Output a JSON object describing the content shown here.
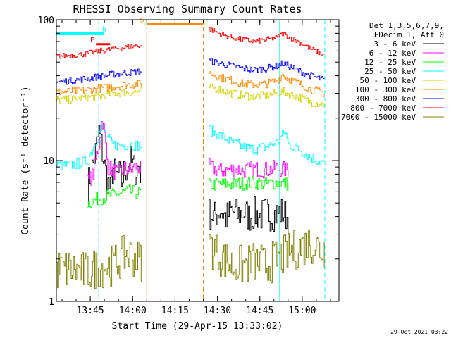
{
  "chart_data": {
    "type": "line",
    "title": "RHESSI Observing Summary Count Rates",
    "xlabel": "Start Time (29-Apr-15 13:33:02)",
    "ylabel": "Count Rate (s⁻¹ detector⁻¹)",
    "yscale": "log",
    "ylim": [
      1,
      100
    ],
    "xlim_minutes": [
      0,
      100
    ],
    "x_unit": "minutes after 13:33:02",
    "x_ticks": [
      {
        "label": "13:45",
        "minute": 12
      },
      {
        "label": "14:00",
        "minute": 27
      },
      {
        "label": "14:15",
        "minute": 42
      },
      {
        "label": "14:30",
        "minute": 57
      },
      {
        "label": "14:45",
        "minute": 72
      },
      {
        "label": "15:00",
        "minute": 87
      }
    ],
    "y_ticks": [
      {
        "label": "1",
        "value": 1
      },
      {
        "label": "10",
        "value": 10
      },
      {
        "label": "100",
        "value": 100
      }
    ],
    "legend_header": [
      "Det 1,3,5,6,7,9,",
      "FDecim 1, Att 0"
    ],
    "legend_position": "top-right (outside plot)",
    "data_gap_minutes": [
      32,
      54
    ],
    "flags": [
      {
        "label": "N",
        "start": 0,
        "end": 17,
        "y": 80,
        "color": "#00ffff"
      },
      {
        "label": "F",
        "start": 14,
        "end": 19,
        "y": 67,
        "color": "#ff0000"
      },
      {
        "label": "S",
        "start": 32,
        "end": 52,
        "y": 93,
        "color": "#ff8800"
      }
    ],
    "annotations": [
      {
        "label": "N",
        "minute": 17,
        "value": 80,
        "color": "#00ffff"
      },
      {
        "label": "F",
        "minute": 12.7,
        "value": 67,
        "color": "#ff0000"
      },
      {
        "label": "S",
        "minute": 30.3,
        "value": 93,
        "color": "#ff8800"
      }
    ],
    "vlines": [
      {
        "minute": 15,
        "color": "#00ffff",
        "dash": true
      },
      {
        "minute": 32,
        "color": "#ff8800",
        "dash": false
      },
      {
        "minute": 52,
        "color": "#ff8800",
        "dash": true
      },
      {
        "minute": 79,
        "color": "#00ffff",
        "dash": false
      },
      {
        "minute": 95,
        "color": "#00ffff",
        "dash": true
      }
    ],
    "series": [
      {
        "name": "3 - 6 keV",
        "color": "#000000",
        "segments": [
          {
            "x": [
              11,
              13,
              14,
              15,
              16,
              17,
              18,
              19,
              20,
              21,
              22,
              23,
              24,
              25,
              26,
              27,
              28,
              29,
              30
            ],
            "y": [
              6.5,
              9.5,
              12,
              16,
              12,
              9,
              7,
              6,
              9,
              7.5,
              8,
              7,
              8.5,
              9,
              10,
              9,
              8.5,
              9,
              8
            ]
          },
          {
            "x": [
              54,
              56,
              58,
              60,
              62,
              64,
              66,
              68,
              70,
              72,
              74,
              76,
              78,
              80,
              82
            ],
            "y": [
              4.2,
              4.0,
              4.5,
              3.9,
              4.4,
              4.1,
              4.3,
              4.0,
              4.2,
              4.0,
              4.3,
              4.1,
              4.2,
              4.3,
              3.9
            ]
          }
        ]
      },
      {
        "name": "6 - 12 keV",
        "color": "#ff00ff",
        "segments": [
          {
            "x": [
              11,
              13,
              15,
              16,
              17,
              18,
              20,
              22,
              24,
              26,
              28,
              30
            ],
            "y": [
              7,
              8,
              13,
              20,
              15,
              9,
              8.5,
              8,
              8.8,
              8.5,
              9,
              8.7
            ]
          },
          {
            "x": [
              54,
              58,
              62,
              66,
              70,
              74,
              78,
              82
            ],
            "y": [
              9,
              8.4,
              8.7,
              8.5,
              8.7,
              8.6,
              8.8,
              8.5
            ]
          }
        ]
      },
      {
        "name": "12 - 25 keV",
        "color": "#00ff00",
        "segments": [
          {
            "x": [
              11,
              15,
              20,
              25,
              30
            ],
            "y": [
              5,
              5.4,
              5.7,
              6,
              5.9
            ]
          },
          {
            "x": [
              54,
              58,
              62,
              66,
              70,
              74,
              78,
              80,
              82
            ],
            "y": [
              6.7,
              6.8,
              6.8,
              6.9,
              7,
              6.8,
              7,
              6.9,
              6.8
            ]
          }
        ]
      },
      {
        "name": "25 - 50 keV",
        "color": "#00ffff",
        "segments": [
          {
            "x": [
              0,
              4,
              8,
              11,
              13,
              15,
              16,
              17,
              18,
              20,
              22,
              26,
              30
            ],
            "y": [
              9.3,
              9.2,
              9.5,
              10,
              12.5,
              15.5,
              17,
              16,
              14.5,
              13,
              12.8,
              13,
              12.7
            ]
          },
          {
            "x": [
              54,
              58,
              62,
              66,
              70,
              74,
              78,
              81,
              82,
              86,
              90,
              95
            ],
            "y": [
              16.5,
              15,
              13.5,
              12.5,
              12,
              12.5,
              13.5,
              16,
              13,
              12,
              10.5,
              9.5
            ]
          }
        ]
      },
      {
        "name": "50 - 100 keV",
        "color": "#d4d400",
        "segments": [
          {
            "x": [
              0,
              5,
              10,
              15,
              20,
              25,
              30
            ],
            "y": [
              27,
              27,
              28,
              28.5,
              30,
              30.5,
              31
            ]
          },
          {
            "x": [
              54,
              58,
              62,
              66,
              70,
              74,
              78,
              80,
              82,
              86,
              90,
              95
            ],
            "y": [
              33,
              32,
              30,
              29,
              28.5,
              29,
              30,
              31,
              30,
              28,
              26,
              25
            ]
          }
        ]
      },
      {
        "name": "100 - 300 keV",
        "color": "#ff8800",
        "segments": [
          {
            "x": [
              0,
              5,
              10,
              15,
              20,
              25,
              30
            ],
            "y": [
              30.5,
              31,
              31.5,
              32.5,
              33.5,
              34.5,
              35
            ]
          },
          {
            "x": [
              54,
              58,
              62,
              66,
              70,
              74,
              78,
              80,
              82,
              86,
              90,
              95
            ],
            "y": [
              42,
              39,
              37,
              35,
              34.5,
              35,
              37,
              41,
              38,
              35,
              32,
              30
            ]
          }
        ]
      },
      {
        "name": "300 - 800 keV",
        "color": "#0000ff",
        "segments": [
          {
            "x": [
              0,
              5,
              10,
              15,
              20,
              25,
              30
            ],
            "y": [
              36,
              37,
              38,
              39.5,
              41,
              42,
              43
            ]
          },
          {
            "x": [
              54,
              58,
              62,
              66,
              70,
              74,
              78,
              80,
              82,
              86,
              90,
              95
            ],
            "y": [
              51,
              49,
              47,
              45,
              44,
              45,
              47,
              49,
              47,
              43,
              40,
              37
            ]
          }
        ]
      },
      {
        "name": "800 - 7000 keV",
        "color": "#ff0000",
        "segments": [
          {
            "x": [
              0,
              5,
              10,
              15,
              20,
              25,
              30
            ],
            "y": [
              55,
              56,
              57,
              60,
              62,
              64,
              66
            ]
          },
          {
            "x": [
              54,
              58,
              62,
              66,
              70,
              74,
              78,
              80,
              82,
              86,
              90,
              95
            ],
            "y": [
              86,
              79,
              75,
              72,
              70,
              72,
              75,
              80,
              76,
              69,
              62,
              56
            ]
          }
        ]
      },
      {
        "name": "7000 - 15000 keV",
        "color": "#808000",
        "segments": [
          {
            "x": [
              0,
              5,
              10,
              15,
              20,
              25,
              30
            ],
            "y": [
              1.65,
              1.7,
              1.6,
              1.75,
              1.8,
              2.2,
              1.9
            ]
          },
          {
            "x": [
              54,
              58,
              62,
              66,
              70,
              74,
              78,
              82,
              86,
              90,
              95
            ],
            "y": [
              2.5,
              2.1,
              1.8,
              1.8,
              1.9,
              1.8,
              2,
              2.2,
              2.4,
              2.6,
              2.3
            ]
          }
        ]
      }
    ]
  },
  "footer": {
    "timestamp": "29-Oct-2021 03:22"
  }
}
